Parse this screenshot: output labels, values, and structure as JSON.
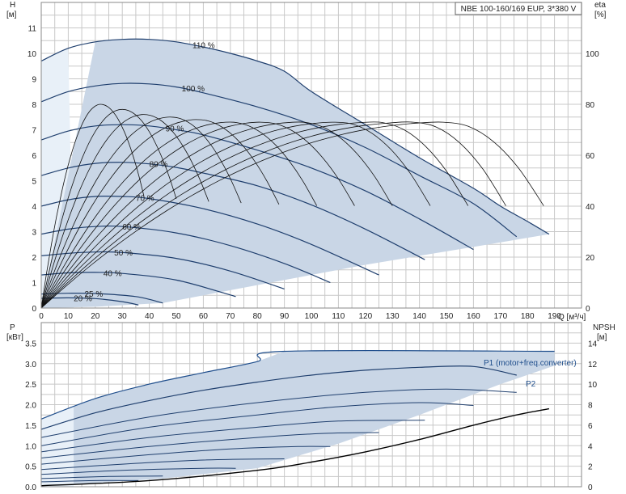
{
  "chart_data": [
    {
      "type": "line",
      "title": "NBE 100-160/169 EUP, 3*380 V",
      "x_axis": {
        "label": "Q [м³/ч]",
        "min": 0,
        "max": 200,
        "ticks": [
          0,
          10,
          20,
          30,
          40,
          50,
          60,
          70,
          80,
          90,
          100,
          110,
          120,
          130,
          140,
          150,
          160,
          170,
          180,
          190
        ]
      },
      "y_axis_left": {
        "label_top": "H",
        "unit": "[м]",
        "min": 0,
        "max": 12,
        "ticks": [
          0,
          1,
          2,
          3,
          4,
          5,
          6,
          7,
          8,
          9,
          10,
          11
        ]
      },
      "y_axis_right": {
        "label_top": "eta",
        "unit": "[%]",
        "min": 0,
        "max": 120,
        "ticks": [
          0,
          20,
          40,
          60,
          80,
          100
        ]
      },
      "speed_curves": [
        {
          "label": "110 %",
          "points": [
            [
              0,
              9.7
            ],
            [
              10,
              10.2
            ],
            [
              20,
              10.45
            ],
            [
              30,
              10.55
            ],
            [
              40,
              10.55
            ],
            [
              50,
              10.45
            ],
            [
              60,
              10.25
            ],
            [
              70,
              10.0
            ],
            [
              80,
              9.7
            ],
            [
              90,
              9.3
            ],
            [
              100,
              8.5
            ],
            [
              120,
              7.2
            ],
            [
              140,
              5.9
            ],
            [
              160,
              4.7
            ],
            [
              170,
              4.0
            ],
            [
              180,
              3.4
            ],
            [
              188,
              2.9
            ]
          ]
        },
        {
          "label": "100 %",
          "points": [
            [
              0,
              8.1
            ],
            [
              10,
              8.5
            ],
            [
              20,
              8.72
            ],
            [
              30,
              8.82
            ],
            [
              40,
              8.8
            ],
            [
              50,
              8.68
            ],
            [
              60,
              8.45
            ],
            [
              80,
              7.9
            ],
            [
              100,
              7.2
            ],
            [
              120,
              6.3
            ],
            [
              140,
              5.2
            ],
            [
              160,
              4.1
            ],
            [
              176,
              2.8
            ]
          ]
        },
        {
          "label": "90 %",
          "points": [
            [
              0,
              6.6
            ],
            [
              10,
              6.95
            ],
            [
              20,
              7.15
            ],
            [
              30,
              7.2
            ],
            [
              40,
              7.15
            ],
            [
              50,
              7.0
            ],
            [
              60,
              6.8
            ],
            [
              80,
              6.2
            ],
            [
              100,
              5.5
            ],
            [
              120,
              4.6
            ],
            [
              140,
              3.5
            ],
            [
              160,
              2.3
            ]
          ]
        },
        {
          "label": "80 %",
          "points": [
            [
              0,
              5.2
            ],
            [
              10,
              5.5
            ],
            [
              20,
              5.68
            ],
            [
              30,
              5.72
            ],
            [
              40,
              5.66
            ],
            [
              50,
              5.52
            ],
            [
              60,
              5.3
            ],
            [
              80,
              4.8
            ],
            [
              100,
              4.05
            ],
            [
              120,
              3.1
            ],
            [
              142,
              1.9
            ]
          ]
        },
        {
          "label": "70 %",
          "points": [
            [
              0,
              4.0
            ],
            [
              10,
              4.25
            ],
            [
              20,
              4.38
            ],
            [
              30,
              4.38
            ],
            [
              40,
              4.3
            ],
            [
              60,
              3.9
            ],
            [
              80,
              3.3
            ],
            [
              100,
              2.5
            ],
            [
              125,
              1.3
            ]
          ]
        },
        {
          "label": "60 %",
          "points": [
            [
              0,
              2.9
            ],
            [
              10,
              3.1
            ],
            [
              20,
              3.2
            ],
            [
              30,
              3.2
            ],
            [
              50,
              2.95
            ],
            [
              70,
              2.45
            ],
            [
              90,
              1.75
            ],
            [
              107,
              1.0
            ]
          ]
        },
        {
          "label": "50 %",
          "points": [
            [
              0,
              2.05
            ],
            [
              10,
              2.15
            ],
            [
              20,
              2.2
            ],
            [
              30,
              2.18
            ],
            [
              50,
              1.95
            ],
            [
              70,
              1.45
            ],
            [
              90,
              0.75
            ]
          ]
        },
        {
          "label": "40 %",
          "points": [
            [
              0,
              1.3
            ],
            [
              10,
              1.38
            ],
            [
              20,
              1.4
            ],
            [
              30,
              1.36
            ],
            [
              50,
              1.1
            ],
            [
              72,
              0.45
            ]
          ]
        },
        {
          "label": "25 %",
          "points": [
            [
              0,
              0.55
            ],
            [
              10,
              0.58
            ],
            [
              20,
              0.57
            ],
            [
              35,
              0.45
            ],
            [
              45,
              0.2
            ]
          ]
        },
        {
          "label": "20 %",
          "points": [
            [
              0,
              0.38
            ],
            [
              10,
              0.4
            ],
            [
              20,
              0.37
            ],
            [
              30,
              0.25
            ],
            [
              36,
              0.12
            ]
          ]
        }
      ],
      "speed_label_positions_q": {
        "110 %": 56,
        "100 %": 52,
        "90 %": 46,
        "80 %": 40,
        "70 %": 35,
        "60 %": 30,
        "50 %": 27,
        "40 %": 23,
        "25 %": 16,
        "20 %": 12
      },
      "eta_curves_peak": [
        {
          "peak_q": 22,
          "peak_eta": 80,
          "end_q": 38
        },
        {
          "peak_q": 30,
          "peak_eta": 78,
          "end_q": 50
        },
        {
          "peak_q": 38,
          "peak_eta": 76,
          "end_q": 62
        },
        {
          "peak_q": 48,
          "peak_eta": 75,
          "end_q": 74
        },
        {
          "peak_q": 58,
          "peak_eta": 74,
          "end_q": 88
        },
        {
          "peak_q": 70,
          "peak_eta": 73,
          "end_q": 102
        },
        {
          "peak_q": 82,
          "peak_eta": 73,
          "end_q": 116
        },
        {
          "peak_q": 96,
          "peak_eta": 73,
          "end_q": 130
        },
        {
          "peak_q": 110,
          "peak_eta": 73,
          "end_q": 144
        },
        {
          "peak_q": 124,
          "peak_eta": 73,
          "end_q": 158
        },
        {
          "peak_q": 138,
          "peak_eta": 73,
          "end_q": 172
        },
        {
          "peak_q": 150,
          "peak_eta": 73,
          "end_q": 186
        }
      ],
      "grid": true
    },
    {
      "type": "line",
      "x_axis": {
        "min": 0,
        "max": 200
      },
      "y_axis_left": {
        "label_top": "P",
        "unit": "[кВт]",
        "min": 0,
        "max": 4,
        "ticks": [
          0.0,
          0.5,
          1.0,
          1.5,
          2.0,
          2.5,
          3.0,
          3.5
        ]
      },
      "y_axis_right": {
        "label_top": "NPSH",
        "unit": "[м]",
        "min": 0,
        "max": 16,
        "ticks": [
          0,
          2,
          4,
          6,
          8,
          10,
          12,
          14
        ]
      },
      "series": [
        {
          "name": "P1 (motor+freq.converter)",
          "points": [
            [
              0,
              1.65
            ],
            [
              20,
              2.15
            ],
            [
              40,
              2.5
            ],
            [
              60,
              2.78
            ],
            [
              80,
              3.05
            ],
            [
              90,
              3.3
            ],
            [
              190,
              3.3
            ]
          ]
        },
        {
          "name": "P2",
          "points": [
            [
              0,
              1.4
            ],
            [
              20,
              1.8
            ],
            [
              40,
              2.1
            ],
            [
              60,
              2.35
            ],
            [
              80,
              2.55
            ],
            [
              100,
              2.72
            ],
            [
              120,
              2.84
            ],
            [
              140,
              2.91
            ],
            [
              160,
              2.93
            ],
            [
              176,
              2.72
            ]
          ]
        }
      ],
      "power_curves_extra": [
        [
          [
            0,
            1.2
          ],
          [
            40,
            1.7
          ],
          [
            80,
            2.05
          ],
          [
            120,
            2.3
          ],
          [
            150,
            2.38
          ],
          [
            176,
            2.3
          ]
        ],
        [
          [
            0,
            1.0
          ],
          [
            40,
            1.45
          ],
          [
            80,
            1.75
          ],
          [
            110,
            1.95
          ],
          [
            140,
            2.05
          ],
          [
            160,
            1.98
          ]
        ],
        [
          [
            0,
            0.85
          ],
          [
            40,
            1.2
          ],
          [
            80,
            1.45
          ],
          [
            110,
            1.6
          ],
          [
            142,
            1.62
          ]
        ],
        [
          [
            0,
            0.7
          ],
          [
            40,
            0.98
          ],
          [
            80,
            1.2
          ],
          [
            105,
            1.3
          ],
          [
            125,
            1.32
          ]
        ],
        [
          [
            0,
            0.55
          ],
          [
            40,
            0.78
          ],
          [
            70,
            0.92
          ],
          [
            95,
            0.98
          ],
          [
            107,
            0.98
          ]
        ],
        [
          [
            0,
            0.42
          ],
          [
            30,
            0.55
          ],
          [
            60,
            0.65
          ],
          [
            90,
            0.68
          ]
        ],
        [
          [
            0,
            0.3
          ],
          [
            30,
            0.4
          ],
          [
            60,
            0.45
          ],
          [
            72,
            0.45
          ]
        ],
        [
          [
            0,
            0.2
          ],
          [
            25,
            0.25
          ],
          [
            45,
            0.26
          ]
        ],
        [
          [
            0,
            0.12
          ],
          [
            20,
            0.15
          ],
          [
            36,
            0.15
          ]
        ]
      ],
      "npsh_curve": [
        [
          0,
          0.1
        ],
        [
          40,
          0.6
        ],
        [
          80,
          1.6
        ],
        [
          100,
          2.4
        ],
        [
          120,
          3.4
        ],
        [
          140,
          4.6
        ],
        [
          160,
          6.0
        ],
        [
          176,
          7.0
        ],
        [
          188,
          7.6
        ]
      ],
      "grid": true
    }
  ]
}
